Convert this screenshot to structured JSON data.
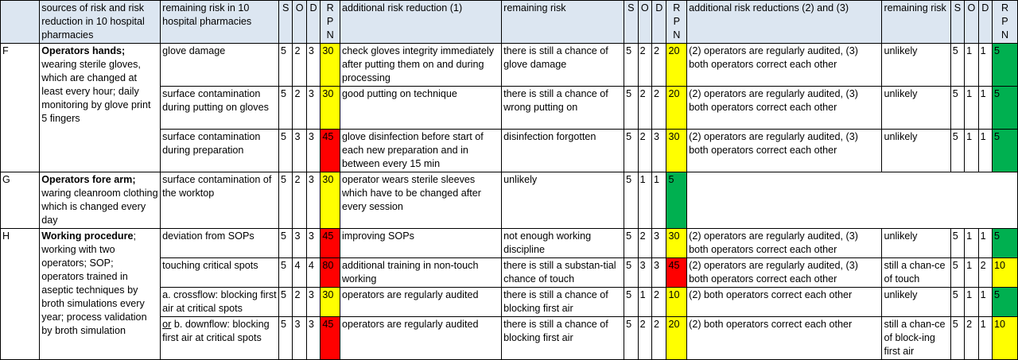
{
  "header": {
    "source": "sources of risk and risk reduction in 10 hospital pharmacies",
    "remaining1": "remaining risk in 10 hospital pharmacies",
    "S": "S",
    "O": "O",
    "D": "D",
    "rpn_r": "R",
    "rpn_p": "P",
    "rpn_n": "N",
    "add1": "additional risk reduction (1)",
    "remaining2": "remaining risk",
    "add23": "additional risk reductions (2) and (3)",
    "remaining3": "remaining risk"
  },
  "groups": {
    "F": {
      "id": "F",
      "title": "Operators hands;",
      "desc": " wearing sterile gloves, which are changed at least every hour; daily monitoring by glove print 5 fingers"
    },
    "G": {
      "id": "G",
      "title": "Operators fore arm;",
      "desc": " waring cleanroom clothing which is changed every day"
    },
    "H": {
      "id": "H",
      "title": "Working procedure",
      "desc": "; working with two operators; SOP; operators trained in aseptic techniques by broth simulations every year; process validation by broth simulation"
    }
  },
  "rows": [
    {
      "risk": "glove damage",
      "s": "5",
      "o": "2",
      "d": "3",
      "rpn": "30",
      "add1": "check gloves integrity immediately after putting them on and during processing",
      "rem2": "there is still a chance of glove damage",
      "s2": "5",
      "o2": "2",
      "d2": "2",
      "rpn2": "20",
      "add23": "(2) operators are regularly audited, (3) both operators correct each other",
      "rem3": "unlikely",
      "s3": "5",
      "o3": "1",
      "d3": "1",
      "rpn3": "5"
    },
    {
      "risk": "surface contamination during putting on gloves",
      "s": "5",
      "o": "2",
      "d": "3",
      "rpn": "30",
      "add1": "good putting on technique",
      "rem2": "there is still a chance of wrong putting on",
      "s2": "5",
      "o2": "2",
      "d2": "2",
      "rpn2": "20",
      "add23": "(2) operators are regularly audited, (3) both operators correct each other",
      "rem3": "unlikely",
      "s3": "5",
      "o3": "1",
      "d3": "1",
      "rpn3": "5"
    },
    {
      "risk": "surface contamination during preparation",
      "s": "5",
      "o": "3",
      "d": "3",
      "rpn": "45",
      "add1": "glove disinfection before start of each new preparation and in between every 15 min",
      "rem2": "disinfection forgotten",
      "s2": "5",
      "o2": "2",
      "d2": "3",
      "rpn2": "30",
      "add23": "(2) operators are regularly audited, (3) both operators correct each other",
      "rem3": "unlikely",
      "s3": "5",
      "o3": "1",
      "d3": "1",
      "rpn3": "5"
    },
    {
      "risk": "surface contamination of the worktop",
      "s": "5",
      "o": "2",
      "d": "3",
      "rpn": "30",
      "add1": "operator wears sterile sleeves which have to be changed after every session",
      "rem2": "unlikely",
      "s2": "5",
      "o2": "1",
      "d2": "1",
      "rpn2": "5"
    },
    {
      "risk": "deviation from SOPs",
      "s": "5",
      "o": "3",
      "d": "3",
      "rpn": "45",
      "add1": "improving SOPs",
      "rem2": "not enough working discipline",
      "s2": "5",
      "o2": "2",
      "d2": "3",
      "rpn2": "30",
      "add23": "(2) operators are regularly audited, (3) both operators correct each other",
      "rem3": "unlikely",
      "s3": "5",
      "o3": "1",
      "d3": "1",
      "rpn3": "5"
    },
    {
      "risk": "touching critical spots",
      "s": "5",
      "o": "4",
      "d": "4",
      "rpn": "80",
      "add1": "additional training in non-touch working",
      "rem2": "there is still a substan-tial chance of touch",
      "s2": "5",
      "o2": "3",
      "d2": "3",
      "rpn2": "45",
      "add23": "(2) operators are regularly audited, (3) both operators correct each other",
      "rem3": "still a chan-ce of touch",
      "s3": "5",
      "o3": "1",
      "d3": "2",
      "rpn3": "10"
    },
    {
      "risk": "a. crossflow: blocking first air at critical spots",
      "s": "5",
      "o": "2",
      "d": "3",
      "rpn": "30",
      "add1": "operators are regularly audited",
      "rem2": "there is still a chance of blocking first air",
      "s2": "5",
      "o2": "1",
      "d2": "2",
      "rpn2": "10",
      "add23": "(2) both operators correct each other",
      "rem3": "unlikely",
      "s3": "5",
      "o3": "1",
      "d3": "1",
      "rpn3": "5"
    },
    {
      "risk_prefix": "or",
      "risk": " b. downflow: blocking first air at critical spots",
      "s": "5",
      "o": "3",
      "d": "3",
      "rpn": "45",
      "add1": "operators are regularly audited",
      "rem2": "there is still a chance of blocking first air",
      "s2": "5",
      "o2": "2",
      "d2": "2",
      "rpn2": "20",
      "add23": "(2) both operators correct each other",
      "rem3": "still a chan-ce of block-ing first air",
      "s3": "5",
      "o3": "2",
      "d3": "1",
      "rpn3": "10"
    }
  ],
  "colors": {
    "header_bg": "#dce6f1",
    "rpn_red": "#ff0000",
    "rpn_yellow": "#ffff00",
    "rpn_green": "#00b050"
  }
}
